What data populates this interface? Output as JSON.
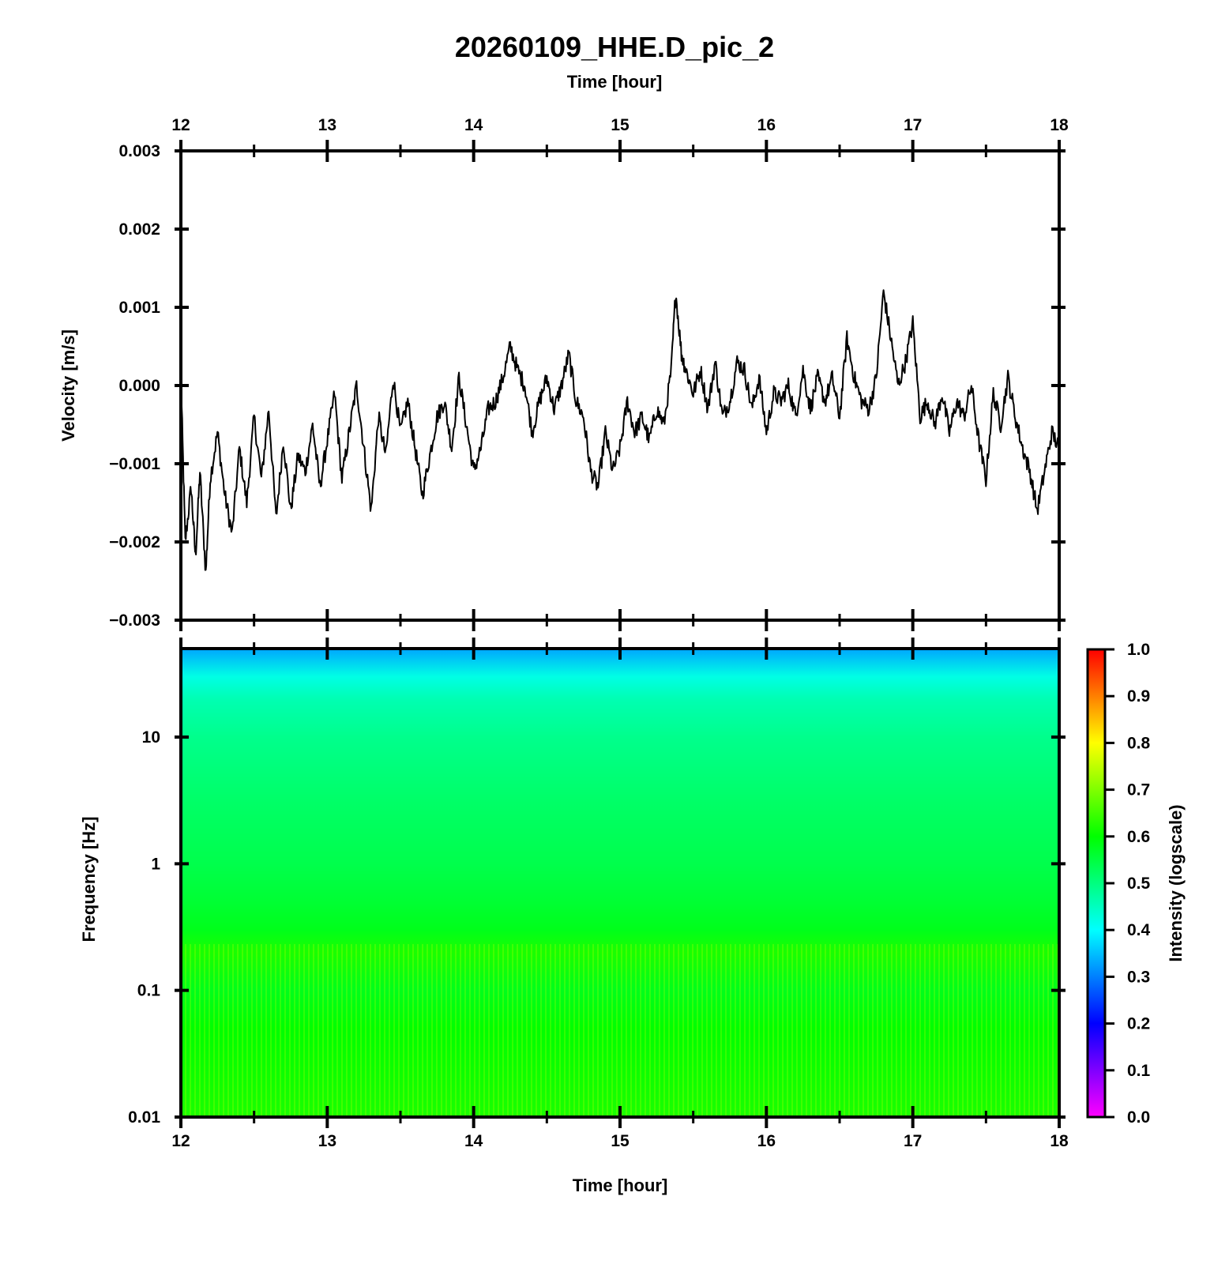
{
  "figure": {
    "title": "20260109_HHE.D_pic_2"
  },
  "chart_data": [
    {
      "type": "line",
      "xlabel": "Time [hour]",
      "ylabel": "Velocity [m/s]",
      "xlim": [
        12,
        18
      ],
      "ylim": [
        -0.003,
        0.003
      ],
      "x_ticks": [
        "12",
        "13",
        "14",
        "15",
        "16",
        "17",
        "18"
      ],
      "y_ticks": [
        {
          "value": 0.003,
          "label": "0.003"
        },
        {
          "value": 0.002,
          "label": "0.002"
        },
        {
          "value": 0.001,
          "label": "0.001"
        },
        {
          "value": 0.0,
          "label": "0.000"
        },
        {
          "value": -0.001,
          "label": "−0.001"
        },
        {
          "value": -0.002,
          "label": "−0.002"
        },
        {
          "value": -0.003,
          "label": "−0.003"
        }
      ],
      "series": [
        {
          "color": "#000000",
          "x": [
            12.0,
            12.03,
            12.07,
            12.1,
            12.13,
            12.17,
            12.2,
            12.25,
            12.3,
            12.35,
            12.4,
            12.45,
            12.5,
            12.55,
            12.6,
            12.65,
            12.7,
            12.75,
            12.8,
            12.85,
            12.9,
            12.95,
            13.0,
            13.05,
            13.1,
            13.15,
            13.2,
            13.25,
            13.3,
            13.35,
            13.4,
            13.45,
            13.5,
            13.55,
            13.6,
            13.65,
            13.7,
            13.75,
            13.8,
            13.85,
            13.9,
            13.95,
            14.0,
            14.05,
            14.1,
            14.15,
            14.2,
            14.25,
            14.3,
            14.35,
            14.4,
            14.45,
            14.5,
            14.55,
            14.6,
            14.65,
            14.7,
            14.75,
            14.8,
            14.85,
            14.9,
            14.95,
            15.0,
            15.05,
            15.1,
            15.15,
            15.2,
            15.25,
            15.3,
            15.35,
            15.38,
            15.42,
            15.45,
            15.5,
            15.55,
            15.6,
            15.65,
            15.7,
            15.75,
            15.8,
            15.85,
            15.9,
            15.95,
            16.0,
            16.05,
            16.1,
            16.15,
            16.2,
            16.25,
            16.3,
            16.35,
            16.4,
            16.45,
            16.5,
            16.55,
            16.6,
            16.65,
            16.7,
            16.75,
            16.8,
            16.85,
            16.9,
            16.95,
            17.0,
            17.05,
            17.1,
            17.15,
            17.2,
            17.25,
            17.3,
            17.35,
            17.4,
            17.45,
            17.5,
            17.55,
            17.6,
            17.65,
            17.7,
            17.75,
            17.8,
            17.85,
            17.9,
            17.95,
            18.0
          ],
          "values": [
            0.0001,
            -0.002,
            -0.0013,
            -0.0022,
            -0.0011,
            -0.0024,
            -0.0012,
            -0.0006,
            -0.0014,
            -0.0019,
            -0.0008,
            -0.0015,
            -0.0004,
            -0.0012,
            -0.0003,
            -0.0017,
            -0.0007,
            -0.0016,
            -0.0009,
            -0.0011,
            -0.0005,
            -0.0013,
            -0.0007,
            -0.0001,
            -0.0012,
            -0.0006,
            0.0,
            -0.0008,
            -0.0016,
            -0.0004,
            -0.0009,
            0.0001,
            -0.0006,
            -0.0002,
            -0.0008,
            -0.0014,
            -0.0009,
            -0.0004,
            -0.0002,
            -0.0008,
            0.0001,
            -0.0005,
            -0.0011,
            -0.0008,
            -0.0003,
            -0.0002,
            0.0001,
            0.0005,
            0.0002,
            0.0,
            -0.0006,
            -0.0002,
            0.0001,
            -0.0003,
            0.0,
            0.0004,
            -0.0002,
            -0.0004,
            -0.0011,
            -0.0013,
            -0.0006,
            -0.0011,
            -0.0008,
            -0.0002,
            -0.0006,
            -0.0004,
            -0.0007,
            -0.0003,
            -0.0005,
            0.0002,
            0.0012,
            0.0004,
            0.0002,
            -0.0001,
            0.0002,
            -0.0003,
            0.0003,
            -0.0004,
            -0.0002,
            0.0003,
            0.0002,
            -0.0003,
            0.0001,
            -0.0006,
            -0.0001,
            -0.0002,
            0.0,
            -0.0004,
            0.0002,
            -0.0003,
            0.0001,
            -0.0002,
            0.0001,
            -0.0004,
            0.0006,
            0.0001,
            -0.0002,
            -0.0003,
            0.0001,
            0.0012,
            0.0006,
            0.0,
            0.0003,
            0.0008,
            -0.0004,
            -0.0002,
            -0.0005,
            -0.0001,
            -0.0006,
            -0.0002,
            -0.0004,
            0.0,
            -0.0007,
            -0.0012,
            -0.0001,
            -0.0005,
            0.0001,
            -0.0004,
            -0.0008,
            -0.0011,
            -0.0016,
            -0.0011,
            -0.0006,
            -0.0008
          ]
        }
      ]
    },
    {
      "type": "heatmap",
      "xlabel": "Time [hour]",
      "ylabel": "Frequency [Hz]",
      "xlim": [
        12,
        18
      ],
      "ylim": [
        0.01,
        50
      ],
      "y_scale": "log",
      "x_ticks": [
        "12",
        "13",
        "14",
        "15",
        "16",
        "17",
        "18"
      ],
      "y_ticks": [
        {
          "value": 10,
          "label": "10"
        },
        {
          "value": 1,
          "label": "1"
        },
        {
          "value": 0.1,
          "label": "0.1"
        },
        {
          "value": 0.01,
          "label": "0.01"
        }
      ],
      "frequency_bands_hz": [
        50,
        30,
        20,
        10,
        3,
        1,
        0.5,
        0.3,
        0.2,
        0.1,
        0.05,
        0.01
      ],
      "intensity": [
        0.33,
        0.42,
        0.46,
        0.49,
        0.52,
        0.54,
        0.56,
        0.58,
        0.62,
        0.58,
        0.6,
        0.62
      ],
      "colorbar": {
        "label": "Intensity (logscale)",
        "range": [
          0.0,
          1.0
        ],
        "ticks": [
          "1.0",
          "0.9",
          "0.8",
          "0.7",
          "0.6",
          "0.5",
          "0.4",
          "0.3",
          "0.2",
          "0.1",
          "0.0"
        ],
        "colors": [
          "#ff00ff",
          "#0000ff",
          "#00ffff",
          "#00ff00",
          "#ffff00",
          "#ff0000"
        ]
      }
    }
  ]
}
